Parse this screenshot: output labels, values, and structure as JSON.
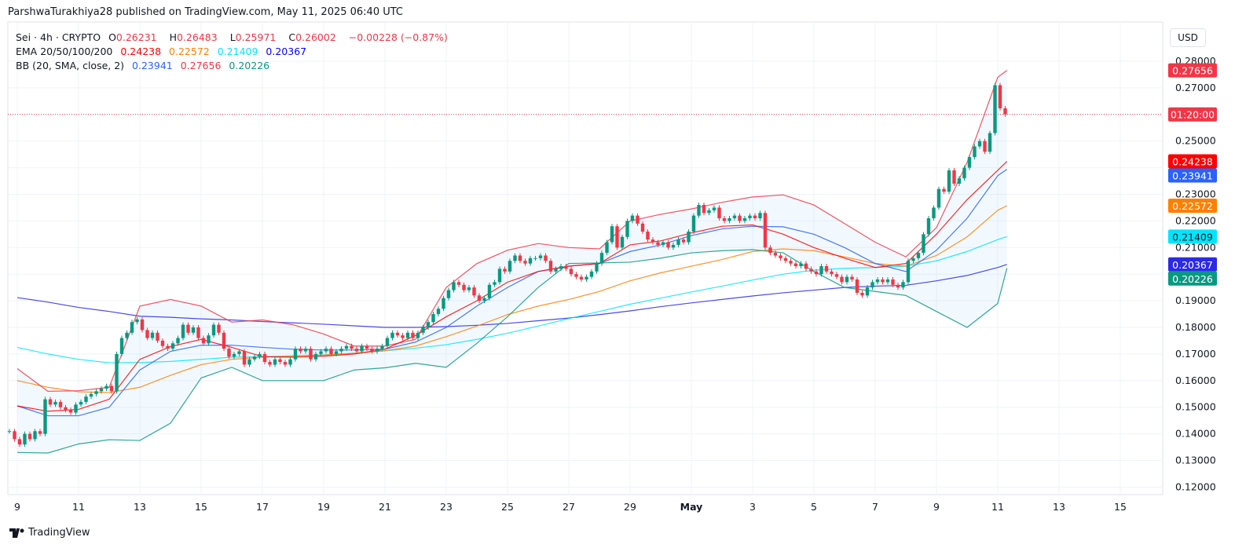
{
  "header": {
    "published": "ParshwaTurakhiya28 published on TradingView.com, May 11, 2025 06:40 UTC"
  },
  "legend": {
    "symbol": "Sei · 4h · CRYPTO",
    "o_label": "O",
    "o": "0.26231",
    "h_label": "H",
    "h": "0.26483",
    "l_label": "L",
    "l": "0.25971",
    "c_label": "C",
    "c": "0.26002",
    "change": "−0.00228 (−0.87%)",
    "ema_label": "EMA 20/50/100/200",
    "ema20": "0.24238",
    "ema50": "0.22572",
    "ema100": "0.21409",
    "ema200": "0.20367",
    "bb_label": "BB (20, SMA, close, 2)",
    "bb_basis": "0.23941",
    "bb_upper": "0.27656",
    "bb_lower": "0.20226"
  },
  "currency_button": "USD",
  "countdown": "01:20:00",
  "footer": {
    "logo_text": "TradingView"
  },
  "colors": {
    "up": "#089981",
    "down": "#f23645",
    "ema20": "#ff0000",
    "ema50": "#ff8000",
    "ema100": "#00e5ff",
    "ema200": "#2a2ae8",
    "bb_basis": "#2962ff",
    "bb_upper": "#f23645",
    "bb_lower": "#089981",
    "bb_fill": "#2196f3"
  },
  "chart_data": {
    "type": "candlestick",
    "timeframe": "4h",
    "ylim": [
      0.115,
      0.285
    ],
    "y_ticks": [
      "0.28000",
      "0.27000",
      "0.25000",
      "0.23000",
      "0.22000",
      "0.21000",
      "0.19000",
      "0.18000",
      "0.17000",
      "0.16000",
      "0.15000",
      "0.14000",
      "0.13000",
      "0.12000"
    ],
    "x_ticks": [
      "9",
      "11",
      "13",
      "15",
      "17",
      "19",
      "21",
      "23",
      "25",
      "27",
      "29",
      "May",
      "3",
      "5",
      "7",
      "9",
      "11",
      "13",
      "15"
    ],
    "first_candle": "Apr 8 20:00",
    "closes": [
      0.141,
      0.138,
      0.136,
      0.14,
      0.138,
      0.141,
      0.14,
      0.153,
      0.151,
      0.152,
      0.15,
      0.149,
      0.148,
      0.151,
      0.152,
      0.154,
      0.155,
      0.156,
      0.157,
      0.158,
      0.156,
      0.17,
      0.176,
      0.178,
      0.182,
      0.183,
      0.179,
      0.176,
      0.178,
      0.175,
      0.173,
      0.172,
      0.174,
      0.176,
      0.181,
      0.178,
      0.18,
      0.176,
      0.174,
      0.177,
      0.181,
      0.178,
      0.172,
      0.169,
      0.17,
      0.171,
      0.166,
      0.168,
      0.169,
      0.17,
      0.167,
      0.166,
      0.168,
      0.167,
      0.166,
      0.168,
      0.172,
      0.171,
      0.172,
      0.168,
      0.17,
      0.171,
      0.172,
      0.17,
      0.171,
      0.172,
      0.173,
      0.172,
      0.171,
      0.173,
      0.172,
      0.171,
      0.172,
      0.173,
      0.176,
      0.178,
      0.177,
      0.176,
      0.178,
      0.176,
      0.178,
      0.18,
      0.182,
      0.185,
      0.187,
      0.191,
      0.194,
      0.197,
      0.196,
      0.194,
      0.195,
      0.192,
      0.19,
      0.191,
      0.196,
      0.197,
      0.202,
      0.201,
      0.205,
      0.207,
      0.205,
      0.204,
      0.206,
      0.206,
      0.207,
      0.205,
      0.201,
      0.202,
      0.203,
      0.202,
      0.2,
      0.199,
      0.198,
      0.199,
      0.201,
      0.204,
      0.208,
      0.212,
      0.218,
      0.21,
      0.214,
      0.22,
      0.222,
      0.219,
      0.216,
      0.213,
      0.212,
      0.211,
      0.212,
      0.21,
      0.211,
      0.213,
      0.212,
      0.216,
      0.222,
      0.226,
      0.223,
      0.224,
      0.225,
      0.221,
      0.22,
      0.221,
      0.222,
      0.22,
      0.221,
      0.222,
      0.221,
      0.223,
      0.21,
      0.208,
      0.207,
      0.206,
      0.205,
      0.204,
      0.203,
      0.204,
      0.202,
      0.201,
      0.2,
      0.203,
      0.201,
      0.2,
      0.199,
      0.197,
      0.199,
      0.198,
      0.193,
      0.192,
      0.195,
      0.197,
      0.198,
      0.197,
      0.198,
      0.196,
      0.195,
      0.197,
      0.205,
      0.206,
      0.208,
      0.215,
      0.221,
      0.225,
      0.232,
      0.231,
      0.239,
      0.234,
      0.236,
      0.24,
      0.244,
      0.248,
      0.25,
      0.246,
      0.253,
      0.271,
      0.26231,
      0.26002
    ],
    "line_dates": [
      "Apr 9",
      "Apr 10",
      "Apr 11",
      "Apr 12",
      "Apr 13",
      "Apr 14",
      "Apr 15",
      "Apr 16",
      "Apr 17",
      "Apr 18",
      "Apr 19",
      "Apr 20",
      "Apr 21",
      "Apr 22",
      "Apr 23",
      "Apr 24",
      "Apr 25",
      "Apr 26",
      "Apr 27",
      "Apr 28",
      "Apr 29",
      "Apr 30",
      "May 1",
      "May 2",
      "May 3",
      "May 4",
      "May 5",
      "May 6",
      "May 7",
      "May 8",
      "May 9",
      "May 10",
      "May 11",
      "May 11 08:00"
    ],
    "series": [
      {
        "name": "EMA 20",
        "key": "ema20",
        "values": [
          0.1505,
          0.1485,
          0.1492,
          0.153,
          0.168,
          0.1728,
          0.1755,
          0.1725,
          0.169,
          0.1688,
          0.1692,
          0.17,
          0.1718,
          0.177,
          0.184,
          0.19,
          0.197,
          0.201,
          0.203,
          0.204,
          0.211,
          0.2125,
          0.2155,
          0.218,
          0.2185,
          0.215,
          0.21,
          0.206,
          0.2025,
          0.204,
          0.215,
          0.228,
          0.239,
          0.24238
        ]
      },
      {
        "name": "EMA 50",
        "key": "ema50",
        "values": [
          0.16,
          0.1575,
          0.1558,
          0.1555,
          0.1575,
          0.162,
          0.166,
          0.168,
          0.1688,
          0.1692,
          0.1696,
          0.1703,
          0.1712,
          0.173,
          0.1765,
          0.1805,
          0.1848,
          0.188,
          0.1905,
          0.1935,
          0.1975,
          0.2005,
          0.203,
          0.2055,
          0.2085,
          0.2095,
          0.2088,
          0.2065,
          0.204,
          0.203,
          0.207,
          0.214,
          0.224,
          0.22572
        ]
      },
      {
        "name": "EMA 100",
        "key": "ema100",
        "values": [
          0.1725,
          0.17,
          0.168,
          0.1667,
          0.1668,
          0.1672,
          0.168,
          0.1688,
          0.169,
          0.1693,
          0.1697,
          0.1703,
          0.1712,
          0.1722,
          0.1735,
          0.1755,
          0.1778,
          0.1805,
          0.1833,
          0.186,
          0.1887,
          0.191,
          0.1933,
          0.1955,
          0.1978,
          0.2,
          0.2015,
          0.2022,
          0.2025,
          0.203,
          0.205,
          0.2085,
          0.213,
          0.21409
        ]
      },
      {
        "name": "EMA 200",
        "key": "ema200",
        "values": [
          0.1912,
          0.1895,
          0.1875,
          0.186,
          0.1842,
          0.1838,
          0.1832,
          0.1828,
          0.1822,
          0.1817,
          0.1812,
          0.1806,
          0.18,
          0.18,
          0.1803,
          0.1808,
          0.1815,
          0.1825,
          0.1835,
          0.1848,
          0.1862,
          0.1878,
          0.1892,
          0.1905,
          0.1918,
          0.193,
          0.194,
          0.195,
          0.1955,
          0.1958,
          0.1975,
          0.1995,
          0.2025,
          0.20367
        ]
      },
      {
        "name": "BB basis",
        "key": "bb_basis",
        "values": [
          0.1505,
          0.1468,
          0.1468,
          0.15,
          0.164,
          0.171,
          0.1733,
          0.1733,
          0.1725,
          0.1718,
          0.1715,
          0.1715,
          0.1718,
          0.1745,
          0.18,
          0.188,
          0.195,
          0.201,
          0.203,
          0.204,
          0.2085,
          0.211,
          0.2145,
          0.217,
          0.218,
          0.2178,
          0.215,
          0.21,
          0.204,
          0.201,
          0.209,
          0.221,
          0.237,
          0.23941
        ]
      },
      {
        "name": "BB upper",
        "key": "bb_upper",
        "values": [
          0.1645,
          0.156,
          0.1562,
          0.1575,
          0.188,
          0.1905,
          0.188,
          0.182,
          0.1828,
          0.181,
          0.1775,
          0.173,
          0.173,
          0.1755,
          0.195,
          0.204,
          0.209,
          0.2115,
          0.21,
          0.2095,
          0.22,
          0.2225,
          0.2245,
          0.227,
          0.229,
          0.2298,
          0.226,
          0.219,
          0.212,
          0.2065,
          0.2175,
          0.242,
          0.274,
          0.27656
        ]
      },
      {
        "name": "BB lower",
        "key": "bb_lower",
        "values": [
          0.133,
          0.1328,
          0.1362,
          0.1378,
          0.1375,
          0.144,
          0.161,
          0.165,
          0.16,
          0.16,
          0.16,
          0.164,
          0.1648,
          0.1665,
          0.165,
          0.174,
          0.184,
          0.195,
          0.204,
          0.2042,
          0.2045,
          0.206,
          0.208,
          0.2088,
          0.2092,
          0.208,
          0.201,
          0.195,
          0.1935,
          0.192,
          0.186,
          0.18,
          0.189,
          0.20226
        ]
      }
    ],
    "price_labels": [
      {
        "text": "0.27656",
        "value": 0.27656,
        "key": "bb_upper"
      },
      {
        "text": "0.24238",
        "value": 0.24238,
        "key": "ema20"
      },
      {
        "text": "0.23941",
        "value": 0.23941,
        "key": "bb_basis"
      },
      {
        "text": "0.22572",
        "value": 0.22572,
        "key": "ema50"
      },
      {
        "text": "0.21409",
        "value": 0.21409,
        "key": "ema100"
      },
      {
        "text": "0.20367",
        "value": 0.20367,
        "key": "ema200"
      },
      {
        "text": "0.20226",
        "value": 0.20226,
        "key": "bb_lower"
      }
    ],
    "current_price": 0.26002,
    "grid": true
  }
}
